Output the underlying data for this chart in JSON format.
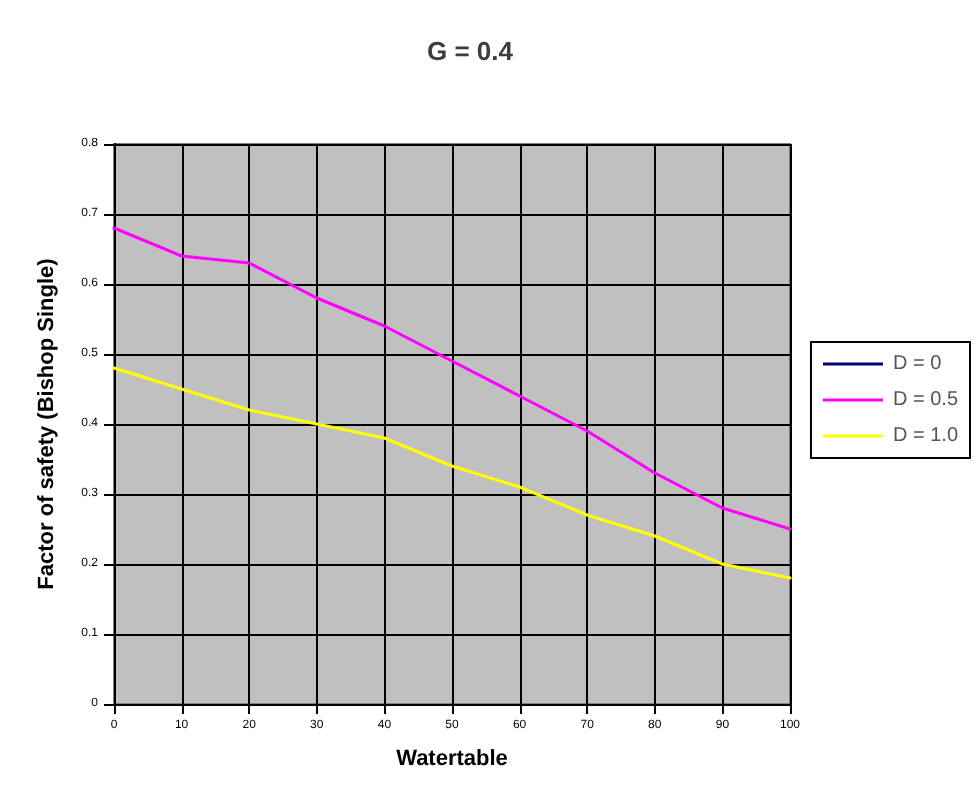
{
  "chart_data": {
    "type": "line",
    "title": "G = 0.4",
    "xlabel": "Watertable",
    "ylabel": "Factor of safety (Bishop Single)",
    "x": [
      0,
      10,
      20,
      30,
      40,
      50,
      60,
      70,
      80,
      90,
      100
    ],
    "series": [
      {
        "name": "D = 0",
        "color": "#000080",
        "values": [
          null,
          null,
          null,
          null,
          null,
          null,
          null,
          null,
          null,
          null,
          null
        ]
      },
      {
        "name": "D = 0.5",
        "color": "#ff00ff",
        "values": [
          0.68,
          0.64,
          0.63,
          0.58,
          0.54,
          0.49,
          0.44,
          0.39,
          0.33,
          0.28,
          0.25
        ]
      },
      {
        "name": "D = 1.0",
        "color": "#ffff00",
        "values": [
          0.48,
          0.45,
          0.42,
          0.4,
          0.38,
          0.34,
          0.31,
          0.27,
          0.24,
          0.2,
          0.18
        ]
      }
    ],
    "xlim": [
      0,
      100
    ],
    "xticks": [
      0,
      10,
      20,
      30,
      40,
      50,
      60,
      70,
      80,
      90,
      100
    ],
    "ylim": [
      0,
      0.8
    ],
    "yticks": [
      0,
      0.1,
      0.2,
      0.3,
      0.4,
      0.5,
      0.6,
      0.7,
      0.8
    ],
    "grid": true,
    "legend": "right",
    "marker": "none",
    "line_style": "solid"
  }
}
